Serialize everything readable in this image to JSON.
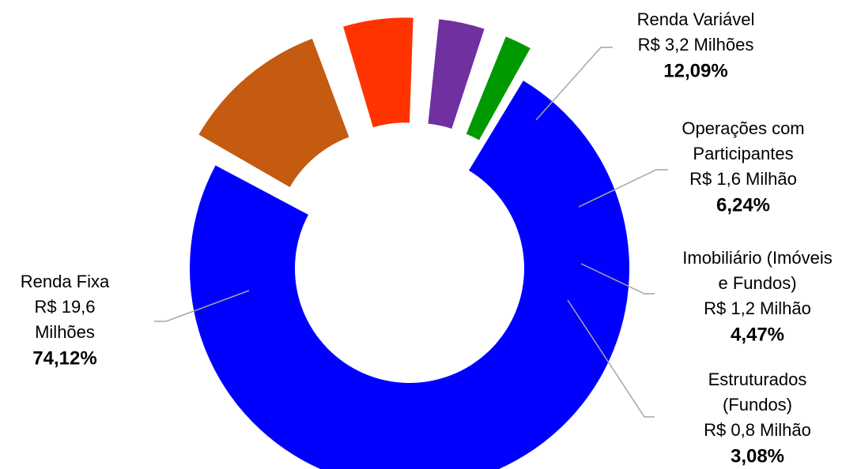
{
  "chart_data": {
    "type": "pie",
    "donut": true,
    "title": "",
    "legend": "none",
    "slices": [
      {
        "name": "Renda Variável",
        "lines": [
          "Renda Variável",
          "R$ 3,2 Milhões"
        ],
        "value_text": "R$ 3,2 Milhões",
        "percent": 12.09,
        "percent_label": "12,09%",
        "color": "#C55A11",
        "exploded": true
      },
      {
        "name": "Operações com Participantes",
        "lines": [
          "Operações com",
          "Participantes",
          "R$ 1,6 Milhão"
        ],
        "value_text": "R$ 1,6 Milhão",
        "percent": 6.24,
        "percent_label": "6,24%",
        "color": "#FF3300",
        "exploded": true
      },
      {
        "name": "Imobiliário (Imóveis e Fundos)",
        "lines": [
          "Imobiliário (Imóveis",
          "e Fundos)",
          "R$ 1,2 Milhão"
        ],
        "value_text": "R$ 1,2 Milhão",
        "percent": 4.47,
        "percent_label": "4,47%",
        "color": "#7030A0",
        "exploded": true
      },
      {
        "name": "Estruturados (Fundos)",
        "lines": [
          "Estruturados",
          "(Fundos)",
          "R$ 0,8 Milhão"
        ],
        "value_text": "R$ 0,8 Milhão",
        "percent": 3.08,
        "percent_label": "3,08%",
        "color": "#009900",
        "exploded": true
      },
      {
        "name": "Renda Fixa",
        "lines": [
          "Renda Fixa",
          "R$ 19,6",
          "Milhões"
        ],
        "value_text": "R$ 19,6 Milhões",
        "percent": 74.12,
        "percent_label": "74,12%",
        "color": "#0000FF",
        "exploded": false
      }
    ]
  }
}
